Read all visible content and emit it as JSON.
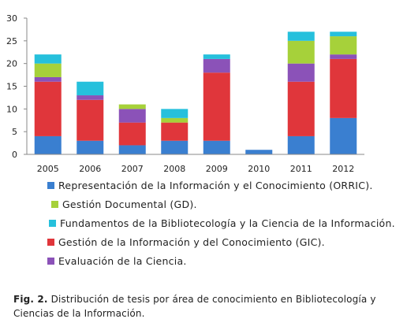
{
  "chart_data": {
    "type": "bar",
    "stacked": true,
    "categories": [
      "2005",
      "2006",
      "2007",
      "2008",
      "2009",
      "2010",
      "2011",
      "2012"
    ],
    "ylim": [
      0,
      30
    ],
    "yticks": [
      0,
      5,
      10,
      15,
      20,
      25,
      30
    ],
    "grid": false,
    "legend_position": "bottom",
    "series": [
      {
        "name": "Representación de la Información y el Conocimiento (ORRIC).",
        "color": "#3a7fd0",
        "values": [
          4,
          3,
          2,
          3,
          3,
          1,
          4,
          8
        ]
      },
      {
        "name": "Gestión de la Información y del Conocimiento (GIC).",
        "color": "#e0363b",
        "values": [
          12,
          9,
          5,
          4,
          15,
          0,
          12,
          13
        ]
      },
      {
        "name": "Evaluación de la Ciencia.",
        "color": "#8b52b8",
        "values": [
          1,
          1,
          3,
          0,
          3,
          0,
          4,
          1
        ]
      },
      {
        "name": "Gestión Documental (GD).",
        "color": "#a6d13a",
        "values": [
          3,
          0,
          1,
          1,
          0,
          0,
          5,
          4
        ]
      },
      {
        "name": "Fundamentos de la Bibliotecología y la Ciencia de la Información.",
        "color": "#26c0dc",
        "values": [
          2,
          3,
          0,
          2,
          1,
          0,
          2,
          1
        ]
      }
    ]
  },
  "legend": [
    {
      "label": "Representación de la Información y el Conocimiento (ORRIC).",
      "color": "#3a7fd0"
    },
    {
      "label": "Gestión Documental (GD).",
      "color": "#a6d13a"
    },
    {
      "label": "Fundamentos de la Bibliotecología y la Ciencia de la Información.",
      "color": "#26c0dc"
    },
    {
      "label": "Gestión de la Información y del Conocimiento (GIC).",
      "color": "#e0363b"
    },
    {
      "label": "Evaluación de la Ciencia.",
      "color": "#8b52b8"
    }
  ],
  "caption": {
    "label": "Fig. 2.",
    "text": "Distribución de tesis por área de conocimiento en  Bibliotecología y Ciencias  de la Información."
  }
}
